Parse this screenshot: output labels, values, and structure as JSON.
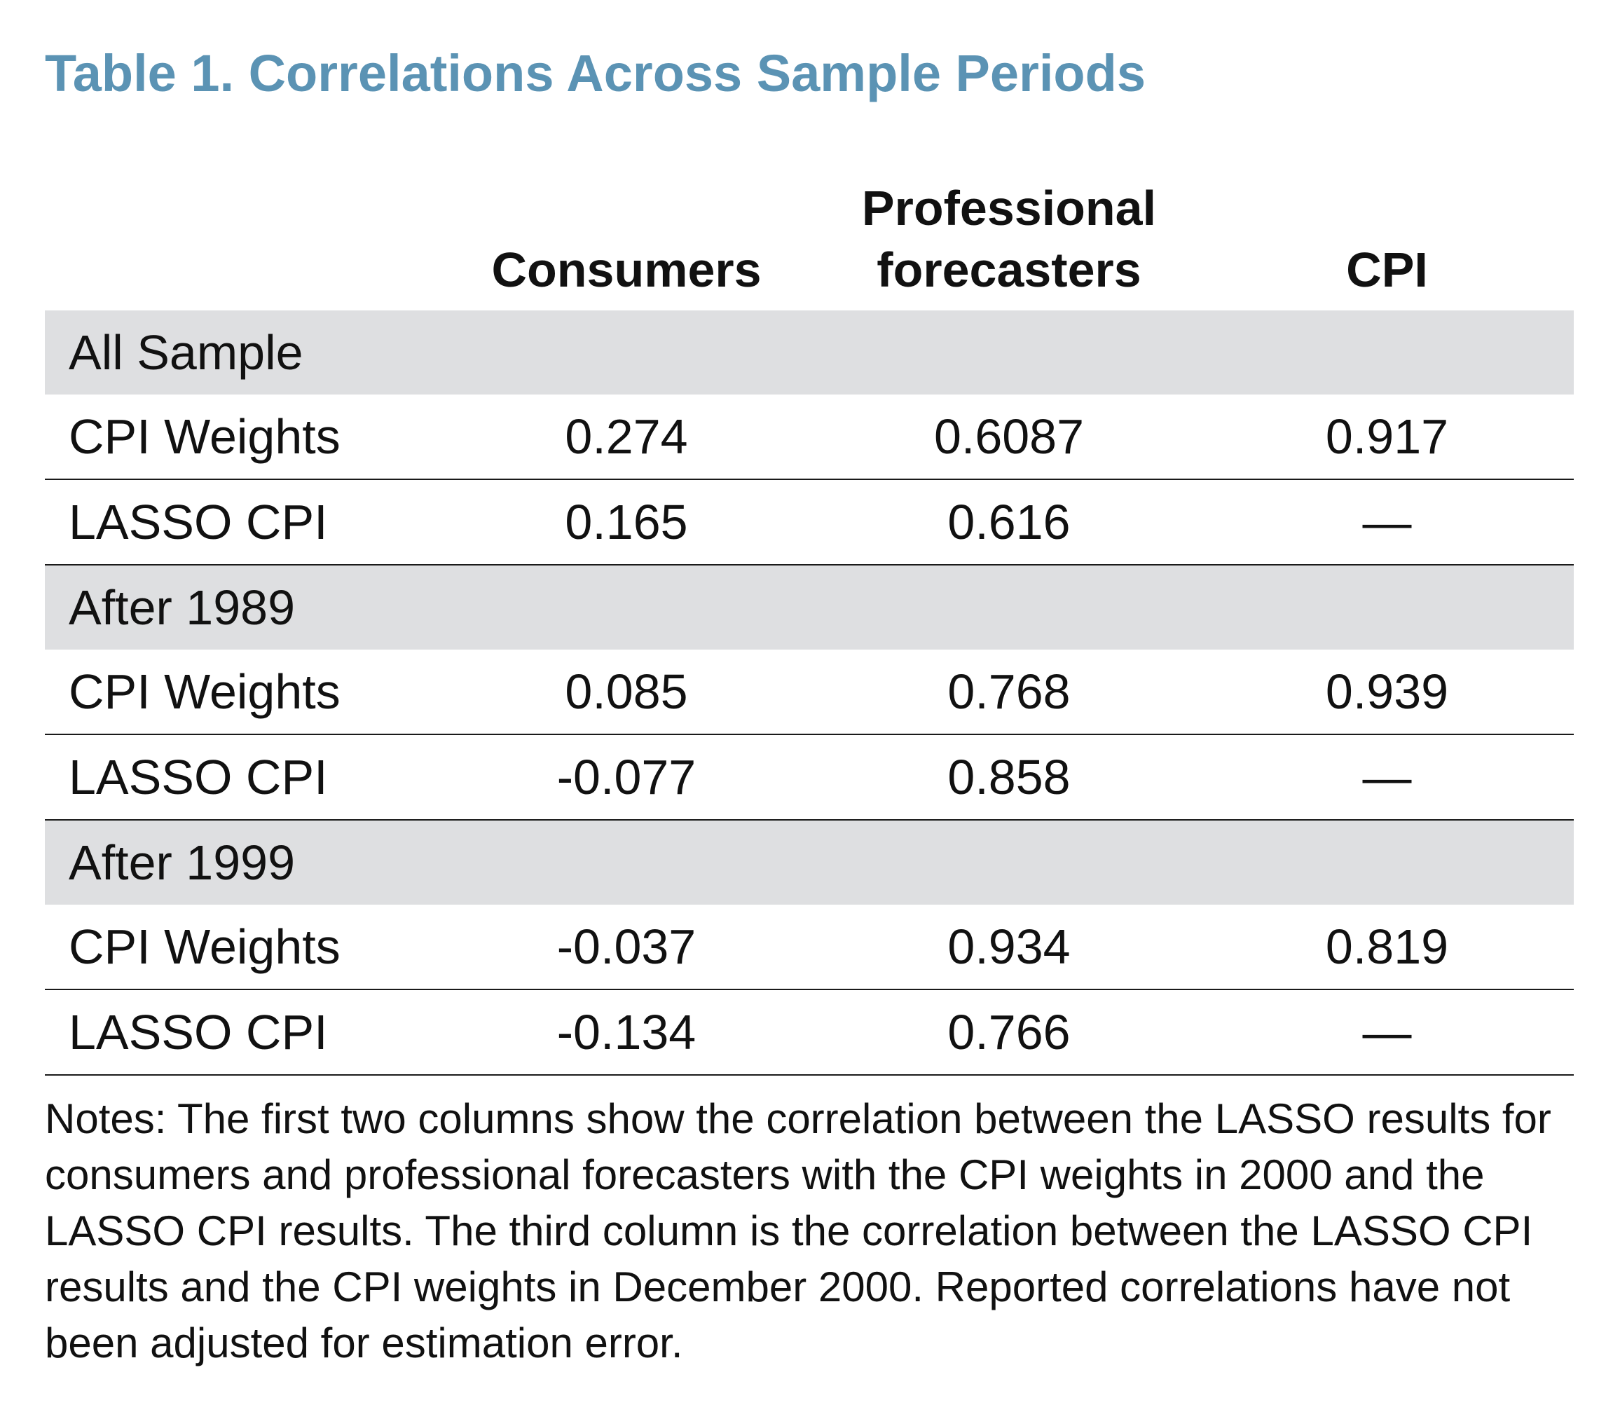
{
  "title": "Table 1. Correlations Across Sample Periods",
  "header": {
    "col_label": "",
    "col_consumers": "Consumers",
    "col_professional_line1": "Professional",
    "col_professional_line2": "forecasters",
    "col_cpi": "CPI"
  },
  "sections": [
    {
      "name": "All Sample",
      "rows": [
        {
          "label": "CPI Weights",
          "consumers": "0.274",
          "professional": "0.6087",
          "cpi": "0.917"
        },
        {
          "label": "LASSO CPI",
          "consumers": "0.165",
          "professional": "0.616",
          "cpi": "—"
        }
      ]
    },
    {
      "name": "After 1989",
      "rows": [
        {
          "label": "CPI Weights",
          "consumers": "0.085",
          "professional": "0.768",
          "cpi": "0.939"
        },
        {
          "label": "LASSO CPI",
          "consumers": "-0.077",
          "professional": "0.858",
          "cpi": "—"
        }
      ]
    },
    {
      "name": "After 1999",
      "rows": [
        {
          "label": "CPI Weights",
          "consumers": "-0.037",
          "professional": "0.934",
          "cpi": "0.819"
        },
        {
          "label": "LASSO CPI",
          "consumers": "-0.134",
          "professional": "0.766",
          "cpi": "—"
        }
      ]
    }
  ],
  "notes": "Notes: The first two columns show the correlation between the LASSO results for consumers and professional forecasters with the CPI weights in 2000 and the LASSO CPI results. The third column is the correlation between the LASSO CPI results and the CPI weights in December 2000. Reported correlations have not been adjusted for estimation error.",
  "colors": {
    "title": "#5b93b4",
    "section_band": "#dedfe1",
    "rule": "#1a1a1a"
  }
}
